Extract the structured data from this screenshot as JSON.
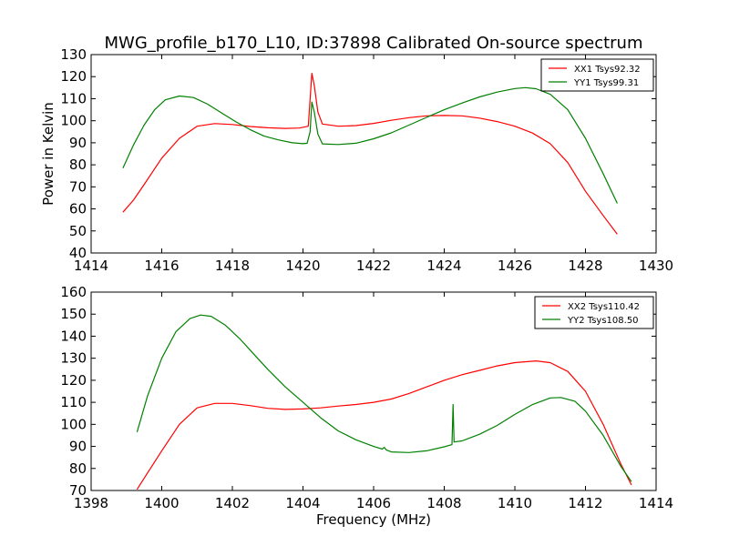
{
  "figure": {
    "title": "MWG_profile_b170_L10, ID:37898 Calibrated On-source spectrum"
  },
  "chart_data": [
    {
      "type": "line",
      "title": "MWG_profile_b170_L10, ID:37898 Calibrated On-source spectrum",
      "xlabel": "",
      "ylabel": "Power in Kelvin",
      "xlim": [
        1414,
        1430
      ],
      "ylim": [
        40,
        130
      ],
      "xticks": [
        1414,
        1416,
        1418,
        1420,
        1422,
        1424,
        1426,
        1428,
        1430
      ],
      "yticks": [
        40,
        50,
        60,
        70,
        80,
        90,
        100,
        110,
        120,
        130
      ],
      "grid": false,
      "legend": "top-right",
      "series": [
        {
          "name": "XX1 Tsys92.32",
          "color": "#ff0000",
          "points": [
            [
              1414.9,
              58.5
            ],
            [
              1415.2,
              64
            ],
            [
              1415.5,
              71
            ],
            [
              1416.0,
              83
            ],
            [
              1416.5,
              92
            ],
            [
              1417.0,
              97.5
            ],
            [
              1417.5,
              98.7
            ],
            [
              1418.0,
              98.3
            ],
            [
              1418.5,
              97.4
            ],
            [
              1419.0,
              96.8
            ],
            [
              1419.5,
              96.5
            ],
            [
              1419.9,
              96.7
            ],
            [
              1420.15,
              97.5
            ],
            [
              1420.25,
              121.5
            ],
            [
              1420.32,
              116
            ],
            [
              1420.42,
              104
            ],
            [
              1420.55,
              98.5
            ],
            [
              1421.0,
              97.5
            ],
            [
              1421.5,
              97.8
            ],
            [
              1422.0,
              98.8
            ],
            [
              1422.5,
              100.2
            ],
            [
              1423.0,
              101.4
            ],
            [
              1423.5,
              102.2
            ],
            [
              1424.0,
              102.4
            ],
            [
              1424.5,
              102.2
            ],
            [
              1425.0,
              101.2
            ],
            [
              1425.5,
              99.6
            ],
            [
              1426.0,
              97.5
            ],
            [
              1426.5,
              94.4
            ],
            [
              1427.0,
              89.6
            ],
            [
              1427.5,
              81
            ],
            [
              1428.0,
              68
            ],
            [
              1428.5,
              57
            ],
            [
              1428.9,
              48.5
            ]
          ]
        },
        {
          "name": "YY1 Tsys99.31",
          "color": "#008000",
          "points": [
            [
              1414.9,
              78.5
            ],
            [
              1415.2,
              89
            ],
            [
              1415.5,
              98
            ],
            [
              1415.8,
              105
            ],
            [
              1416.1,
              109.5
            ],
            [
              1416.5,
              111.2
            ],
            [
              1416.9,
              110.5
            ],
            [
              1417.3,
              107.5
            ],
            [
              1417.7,
              103.5
            ],
            [
              1418.1,
              99.5
            ],
            [
              1418.5,
              96
            ],
            [
              1418.9,
              93
            ],
            [
              1419.3,
              91.3
            ],
            [
              1419.7,
              90
            ],
            [
              1420.0,
              89.6
            ],
            [
              1420.12,
              89.8
            ],
            [
              1420.2,
              95
            ],
            [
              1420.25,
              108.5
            ],
            [
              1420.32,
              104
            ],
            [
              1420.42,
              94
            ],
            [
              1420.55,
              89.5
            ],
            [
              1421.0,
              89.2
            ],
            [
              1421.5,
              89.8
            ],
            [
              1422.0,
              91.8
            ],
            [
              1422.5,
              94.5
            ],
            [
              1423.0,
              98
            ],
            [
              1423.5,
              101.5
            ],
            [
              1424.0,
              105
            ],
            [
              1424.5,
              108
            ],
            [
              1425.0,
              110.8
            ],
            [
              1425.5,
              113
            ],
            [
              1426.0,
              114.6
            ],
            [
              1426.3,
              115
            ],
            [
              1426.6,
              114.5
            ],
            [
              1427.0,
              112
            ],
            [
              1427.5,
              105
            ],
            [
              1428.0,
              92
            ],
            [
              1428.5,
              76
            ],
            [
              1428.9,
              62.5
            ]
          ]
        }
      ]
    },
    {
      "type": "line",
      "title": "",
      "xlabel": "Frequency (MHz)",
      "ylabel": "",
      "xlim": [
        1398,
        1414
      ],
      "ylim": [
        70,
        160
      ],
      "xticks": [
        1398,
        1400,
        1402,
        1404,
        1406,
        1408,
        1410,
        1412,
        1414
      ],
      "yticks": [
        70,
        80,
        90,
        100,
        110,
        120,
        130,
        140,
        150,
        160
      ],
      "grid": false,
      "legend": "top-right",
      "series": [
        {
          "name": "XX2 Tsys110.42",
          "color": "#ff0000",
          "points": [
            [
              1399.3,
              70.5
            ],
            [
              1399.6,
              78
            ],
            [
              1400.0,
              88
            ],
            [
              1400.5,
              100
            ],
            [
              1401.0,
              107.5
            ],
            [
              1401.5,
              109.5
            ],
            [
              1402.0,
              109.5
            ],
            [
              1402.5,
              108.5
            ],
            [
              1403.0,
              107.3
            ],
            [
              1403.5,
              106.8
            ],
            [
              1404.0,
              107
            ],
            [
              1404.5,
              107.5
            ],
            [
              1405.0,
              108.3
            ],
            [
              1405.5,
              109
            ],
            [
              1406.0,
              110
            ],
            [
              1406.5,
              111.5
            ],
            [
              1407.0,
              114
            ],
            [
              1407.5,
              117
            ],
            [
              1408.0,
              120
            ],
            [
              1408.5,
              122.5
            ],
            [
              1409.0,
              124.5
            ],
            [
              1409.5,
              126.5
            ],
            [
              1410.0,
              128
            ],
            [
              1410.6,
              128.8
            ],
            [
              1411.0,
              128
            ],
            [
              1411.5,
              124
            ],
            [
              1412.0,
              115
            ],
            [
              1412.5,
              100
            ],
            [
              1413.0,
              82
            ],
            [
              1413.3,
              72.5
            ]
          ]
        },
        {
          "name": "YY2 Tsys108.50",
          "color": "#008000",
          "points": [
            [
              1399.3,
              96.5
            ],
            [
              1399.6,
              113
            ],
            [
              1400.0,
              130
            ],
            [
              1400.4,
              142
            ],
            [
              1400.8,
              148
            ],
            [
              1401.1,
              149.6
            ],
            [
              1401.4,
              149
            ],
            [
              1401.8,
              145
            ],
            [
              1402.2,
              139
            ],
            [
              1402.6,
              132
            ],
            [
              1403.0,
              125
            ],
            [
              1403.5,
              117
            ],
            [
              1404.0,
              110
            ],
            [
              1404.5,
              103
            ],
            [
              1405.0,
              97
            ],
            [
              1405.5,
              93
            ],
            [
              1406.0,
              90
            ],
            [
              1406.25,
              88.8
            ],
            [
              1406.3,
              89.6
            ],
            [
              1406.36,
              88.4
            ],
            [
              1406.5,
              87.5
            ],
            [
              1407.0,
              87.2
            ],
            [
              1407.5,
              88
            ],
            [
              1408.0,
              89.8
            ],
            [
              1408.22,
              90.8
            ],
            [
              1408.25,
              109
            ],
            [
              1408.28,
              92
            ],
            [
              1408.5,
              92.5
            ],
            [
              1409.0,
              95.5
            ],
            [
              1409.5,
              99.5
            ],
            [
              1410.0,
              104.5
            ],
            [
              1410.5,
              109
            ],
            [
              1411.0,
              112
            ],
            [
              1411.3,
              112.2
            ],
            [
              1411.7,
              110.5
            ],
            [
              1412.0,
              106
            ],
            [
              1412.5,
              95
            ],
            [
              1413.0,
              81
            ],
            [
              1413.3,
              74
            ]
          ]
        }
      ]
    }
  ]
}
